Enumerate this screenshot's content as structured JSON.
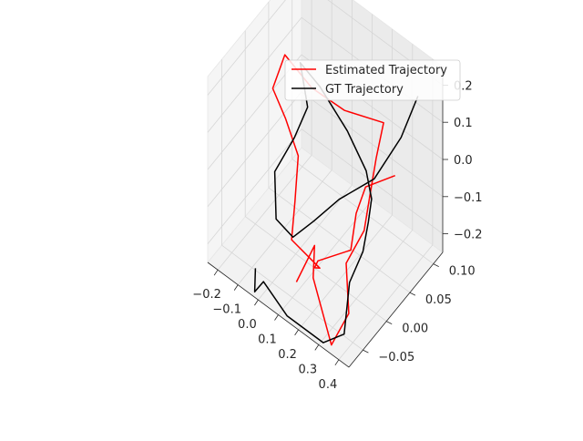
{
  "chart_data": {
    "type": "line",
    "projection": "3d",
    "title": "",
    "xlabel": "",
    "ylabel": "",
    "zlabel": "",
    "grid": true,
    "legend_position": "top-right",
    "xlim": [
      -0.25,
      0.45
    ],
    "ylim": [
      -0.08,
      0.12
    ],
    "zlim": [
      -0.25,
      0.25
    ],
    "xticks": [
      -0.2,
      -0.1,
      0.0,
      0.1,
      0.2,
      0.3,
      0.4
    ],
    "xtick_labels": [
      "−0.2",
      "−0.1",
      "0.0",
      "0.1",
      "0.2",
      "0.3",
      "0.4"
    ],
    "yticks": [
      -0.05,
      0.0,
      0.05,
      0.1
    ],
    "ytick_labels": [
      "−0.05",
      "0.00",
      "0.05",
      "0.10"
    ],
    "zticks": [
      -0.2,
      -0.1,
      0.0,
      0.1,
      0.2
    ],
    "ztick_labels": [
      "−0.2",
      "−0.1",
      "0.0",
      "0.1",
      "0.2"
    ],
    "series": [
      {
        "name": "Estimated Trajectory",
        "color": "#ff0000",
        "x": [
          0.4,
          0.3,
          0.3,
          0.32,
          0.18,
          0.14,
          0.12,
          -0.02,
          -0.05,
          -0.08,
          -0.12,
          -0.16,
          -0.17,
          -0.06,
          0.08,
          0.25,
          0.26,
          0.32,
          0.34,
          0.32,
          0.38,
          0.34,
          0.18,
          0.14,
          0.12
        ],
        "y": [
          0.04,
          0.02,
          0.0,
          -0.02,
          -0.03,
          -0.02,
          0.0,
          0.0,
          0.02,
          0.04,
          0.03,
          0.02,
          0.05,
          0.06,
          0.07,
          0.08,
          0.06,
          0.02,
          0.0,
          -0.03,
          -0.05,
          -0.07,
          -0.04,
          -0.02,
          -0.05
        ],
        "z": [
          0.06,
          0.02,
          -0.02,
          -0.08,
          -0.15,
          -0.2,
          -0.24,
          -0.22,
          -0.16,
          -0.08,
          0.02,
          0.1,
          0.14,
          0.08,
          0.06,
          0.08,
          0.02,
          0.0,
          -0.05,
          -0.1,
          -0.18,
          -0.25,
          -0.18,
          -0.14,
          -0.2
        ]
      },
      {
        "name": "GT Trajectory",
        "color": "#000000",
        "x": [
          0.42,
          0.36,
          0.25,
          0.1,
          0.02,
          -0.06,
          -0.12,
          -0.15,
          -0.1,
          -0.08,
          -0.14,
          -0.02,
          0.14,
          0.28,
          0.33,
          0.36,
          0.38,
          0.36,
          0.38,
          0.3,
          0.12,
          -0.02,
          -0.04,
          -0.06
        ],
        "y": [
          0.08,
          0.07,
          0.06,
          0.05,
          0.03,
          0.02,
          0.01,
          0.02,
          0.04,
          0.06,
          0.07,
          0.06,
          0.05,
          0.03,
          0.02,
          0.0,
          -0.02,
          -0.04,
          -0.06,
          -0.07,
          -0.07,
          -0.06,
          -0.07,
          -0.06
        ],
        "z": [
          0.22,
          0.1,
          -0.04,
          -0.14,
          -0.2,
          -0.26,
          -0.22,
          -0.12,
          -0.04,
          0.02,
          0.1,
          0.1,
          0.06,
          0.04,
          0.0,
          -0.02,
          -0.06,
          -0.12,
          -0.22,
          -0.26,
          -0.26,
          -0.24,
          -0.26,
          -0.22
        ]
      }
    ]
  }
}
